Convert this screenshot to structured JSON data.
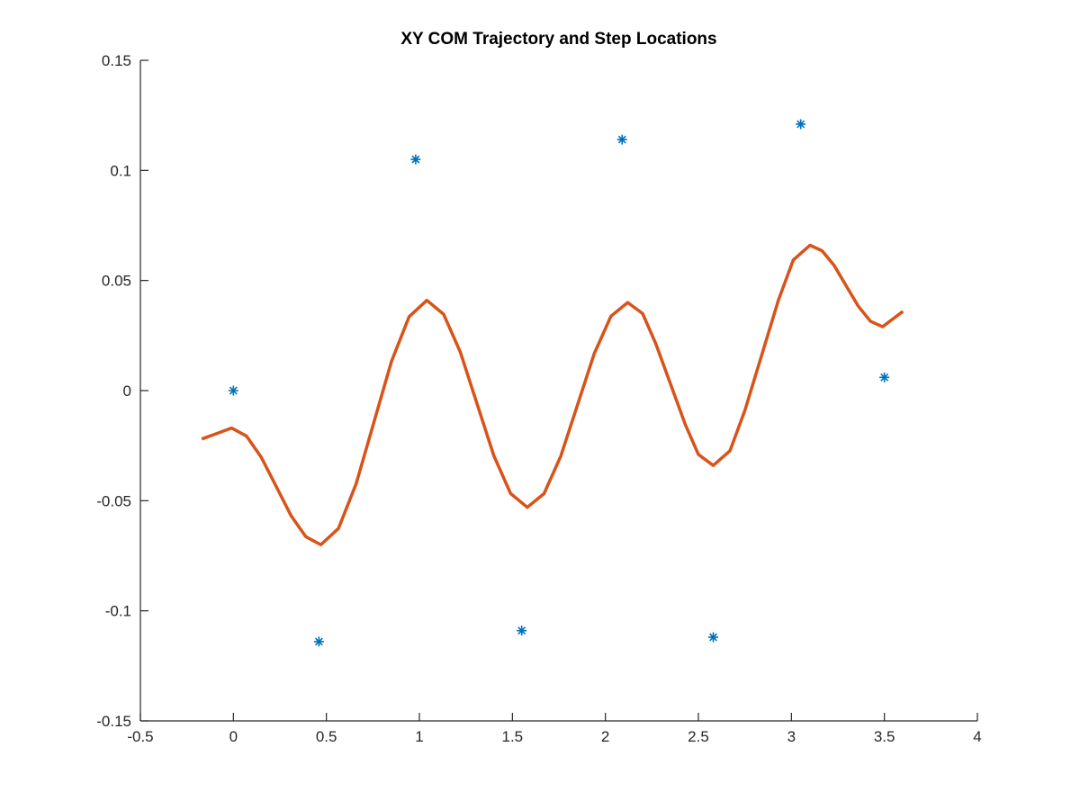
{
  "chart_data": {
    "type": "line",
    "title": "XY COM Trajectory and Step Locations",
    "xlim": [
      -0.5,
      4
    ],
    "xticks": [
      -0.5,
      0,
      0.5,
      1,
      1.5,
      2,
      2.5,
      3,
      3.5,
      4
    ],
    "ylim": [
      -0.15,
      0.15
    ],
    "yticks": [
      -0.15,
      -0.1,
      -0.05,
      0,
      0.05,
      0.1,
      0.15
    ],
    "grid": false,
    "series": [
      {
        "type": "scatter",
        "color": "#0072bd",
        "x": [
          0.0,
          0.46,
          0.98,
          1.55,
          2.09,
          2.58,
          3.05,
          3.5
        ],
        "values": [
          0.0,
          -0.114,
          0.105,
          -0.109,
          0.114,
          -0.112,
          0.121,
          0.006
        ]
      },
      {
        "type": "line",
        "color": "#d95319",
        "x": [
          -0.17,
          -0.09,
          -0.01,
          0.07,
          0.15,
          0.23,
          0.31,
          0.39,
          0.47,
          0.565,
          0.66,
          0.755,
          0.85,
          0.945,
          1.04,
          1.13,
          1.22,
          1.31,
          1.4,
          1.49,
          1.58,
          1.67,
          1.76,
          1.85,
          1.94,
          2.03,
          2.12,
          2.2,
          2.27,
          2.35,
          2.43,
          2.5,
          2.58,
          2.67,
          2.75,
          2.84,
          2.93,
          3.01,
          3.1,
          3.165,
          3.23,
          3.295,
          3.36,
          3.425,
          3.49,
          3.545,
          3.6
        ],
        "values": [
          -0.022,
          -0.0195,
          -0.017,
          -0.0206,
          -0.0303,
          -0.0435,
          -0.0568,
          -0.0664,
          -0.07,
          -0.0626,
          -0.0423,
          -0.0145,
          0.0133,
          0.0336,
          0.041,
          0.0347,
          0.0175,
          -0.006,
          -0.0295,
          -0.0467,
          -0.053,
          -0.0468,
          -0.0298,
          -0.0065,
          0.0168,
          0.0338,
          0.04,
          0.035,
          0.0215,
          0.003,
          -0.0155,
          -0.029,
          -0.034,
          -0.0273,
          -0.009,
          0.016,
          0.041,
          0.0593,
          0.066,
          0.0635,
          0.0568,
          0.0475,
          0.0383,
          0.0315,
          0.029,
          0.0325,
          0.036
        ]
      }
    ]
  }
}
